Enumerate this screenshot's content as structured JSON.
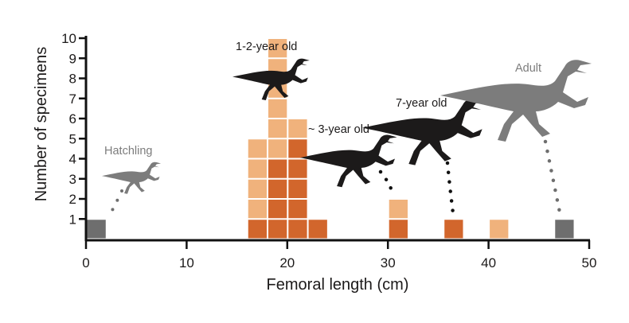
{
  "chart_data": {
    "type": "bar",
    "subtype": "stacked-histogram",
    "xlabel": "Femoral length (cm)",
    "ylabel": "Number of specimens",
    "xlim": [
      0,
      50
    ],
    "ylim": [
      0,
      10
    ],
    "x_ticks": [
      "0",
      "10",
      "20",
      "30",
      "40",
      "50"
    ],
    "y_ticks": [
      "1",
      "2",
      "3",
      "4",
      "5",
      "6",
      "7",
      "8",
      "9",
      "10"
    ],
    "grid": false,
    "colors": {
      "dark": "#d2662c",
      "light": "#f0b27c",
      "gray": "#6e6e6e",
      "silhouette_black": "#1c1a1a",
      "silhouette_gray": "#7c7c7c"
    },
    "bins": [
      {
        "x_start": 0,
        "x_end": 2,
        "gray": 1,
        "dark": 0,
        "light": 0
      },
      {
        "x_start": 16,
        "x_end": 18,
        "gray": 0,
        "dark": 1,
        "light": 4
      },
      {
        "x_start": 18,
        "x_end": 20,
        "gray": 0,
        "dark": 4,
        "light": 6
      },
      {
        "x_start": 20,
        "x_end": 22,
        "gray": 0,
        "dark": 5,
        "light": 1
      },
      {
        "x_start": 22,
        "x_end": 24,
        "gray": 0,
        "dark": 1,
        "light": 0
      },
      {
        "x_start": 30,
        "x_end": 32,
        "gray": 0,
        "dark": 1,
        "light": 1
      },
      {
        "x_start": 35.5,
        "x_end": 37.5,
        "gray": 0,
        "dark": 1,
        "light": 0
      },
      {
        "x_start": 40,
        "x_end": 42,
        "gray": 0,
        "dark": 0,
        "light": 1
      },
      {
        "x_start": 46.5,
        "x_end": 48.5,
        "gray": 1,
        "dark": 0,
        "light": 0
      }
    ],
    "annotations": [
      {
        "label": "Hatchling",
        "icon": "dinosaur-silhouette-icon",
        "color": "gray"
      },
      {
        "label": "1-2-year old",
        "icon": "dinosaur-silhouette-icon",
        "color": "black"
      },
      {
        "label": "~ 3-year old",
        "icon": "dinosaur-silhouette-icon",
        "color": "black"
      },
      {
        "label": "7-year old",
        "icon": "dinosaur-silhouette-icon",
        "color": "black"
      },
      {
        "label": "Adult",
        "icon": "dinosaur-silhouette-icon",
        "color": "gray"
      }
    ]
  }
}
